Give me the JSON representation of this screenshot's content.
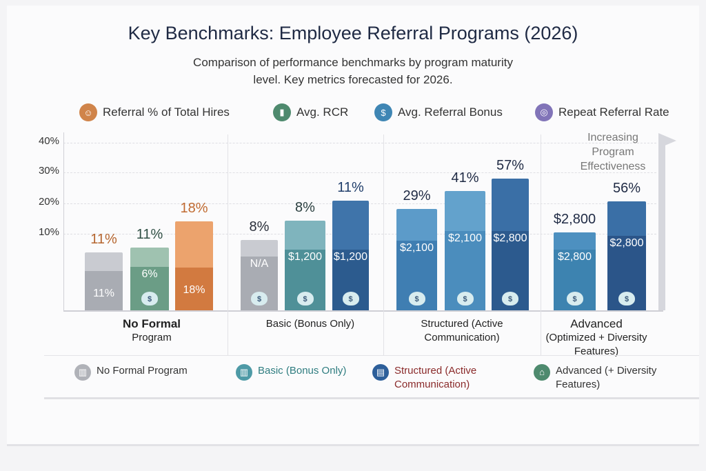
{
  "title": "Key Benchmarks: Employee Referral Programs (2026)",
  "subtitle": "Comparison of performance benchmarks by program maturity level. Key metrics forecasted for 2026.",
  "metric_legend": [
    {
      "label": "Referral % of Total Hires",
      "color": "#d0844a",
      "icon": "people-icon"
    },
    {
      "label": "Avg. RCR",
      "color": "#4e8a6e",
      "icon": "bar-chart-icon"
    },
    {
      "label": "Avg. Referral Bonus",
      "color": "#3f86b4",
      "icon": "money-bag-icon"
    },
    {
      "label": "Repeat Referral Rate",
      "color": "#8174b8",
      "icon": "globe-icon"
    }
  ],
  "chart_data": {
    "type": "bar",
    "yticks": [
      "40%",
      "30%",
      "20%",
      "10%"
    ],
    "annotation": "Increasing Program Effectiveness",
    "categories": [
      "No Formal Program",
      "Basic (Bonus Only)",
      "Structured (Active Communication)",
      "Advanced (Optimized + Diversity Features)"
    ],
    "category_labels": [
      [
        "No Formal",
        "Program"
      ],
      [
        "Basic (Bonus Only)"
      ],
      [
        "Structured (Active",
        "Communication)"
      ],
      [
        "Advanced",
        "(Optimized + Diversity",
        "Features)"
      ]
    ],
    "groups": [
      {
        "bars": [
          {
            "top": "11%",
            "inner": "11%",
            "color": "#c9cbd1",
            "dark": "#a9acb3",
            "topcolor": "#b5652e",
            "bag": false
          },
          {
            "top": "11%",
            "inner": "6%",
            "color": "#9fc2b0",
            "dark": "#6b9d86",
            "topcolor": "#2f4f44",
            "bag": true
          },
          {
            "top": "18%",
            "inner": "18%",
            "color": "#eca36d",
            "dark": "#d27a40",
            "topcolor": "#c06a30",
            "bag": false
          }
        ]
      },
      {
        "bars": [
          {
            "top": "8%",
            "inner": "N/A",
            "color": "#c9cbd1",
            "dark": "#a9acb3",
            "topcolor": "#2a2f3a",
            "bag": true
          },
          {
            "top": "8%",
            "inner": "$1,200",
            "color": "#7fb4bd",
            "dark": "#4f9098",
            "topcolor": "#2a3f3f",
            "bag": true
          },
          {
            "top": "11%",
            "inner": "$1,200",
            "color": "#3f74aa",
            "dark": "#2c5b8e",
            "topcolor": "#1f3d6a",
            "bag": true
          }
        ]
      },
      {
        "bars": [
          {
            "top": "29%",
            "inner": "$2,100",
            "color": "#5c9bc9",
            "dark": "#3f7eb2",
            "topcolor": "#1f2a44",
            "bag": true
          },
          {
            "top": "41%",
            "inner": "$2,100",
            "color": "#63a2cc",
            "dark": "#4b8dbd",
            "topcolor": "#1f2a44",
            "bag": true
          },
          {
            "top": "57%",
            "inner": "$2,800",
            "color": "#3a6fa6",
            "dark": "#2c5a8e",
            "topcolor": "#1f2a44",
            "bag": true
          }
        ]
      },
      {
        "bars": [
          {
            "top": "$2,800",
            "inner": "$2,800",
            "color": "#4d90c0",
            "dark": "#3d83b0",
            "topcolor": "#1f2a44",
            "bag": true
          },
          {
            "top": "56%",
            "inner": "$2,800",
            "color": "#3a6fa6",
            "dark": "#2b5589",
            "topcolor": "#1f2a44",
            "bag": true
          }
        ]
      }
    ]
  },
  "program_legend": [
    {
      "label": "No Formal Program",
      "color": "#b0b2b8",
      "textcolor": "#333",
      "icon": "chart-icon"
    },
    {
      "label": "Basic",
      "sub": "(Bonus Only)",
      "color": "#4e9aa6",
      "textcolor": "#2f7d80",
      "icon": "chart-icon"
    },
    {
      "label": "Structured",
      "sub": "(Active Communication)",
      "color": "#2d5f9a",
      "textcolor": "#8a2a2a",
      "icon": "clipboard-icon"
    },
    {
      "label": "Advanced",
      "sub": "(+ Diversity Features)",
      "color": "#4e8a6e",
      "textcolor": "#333",
      "icon": "graduation-icon"
    }
  ]
}
